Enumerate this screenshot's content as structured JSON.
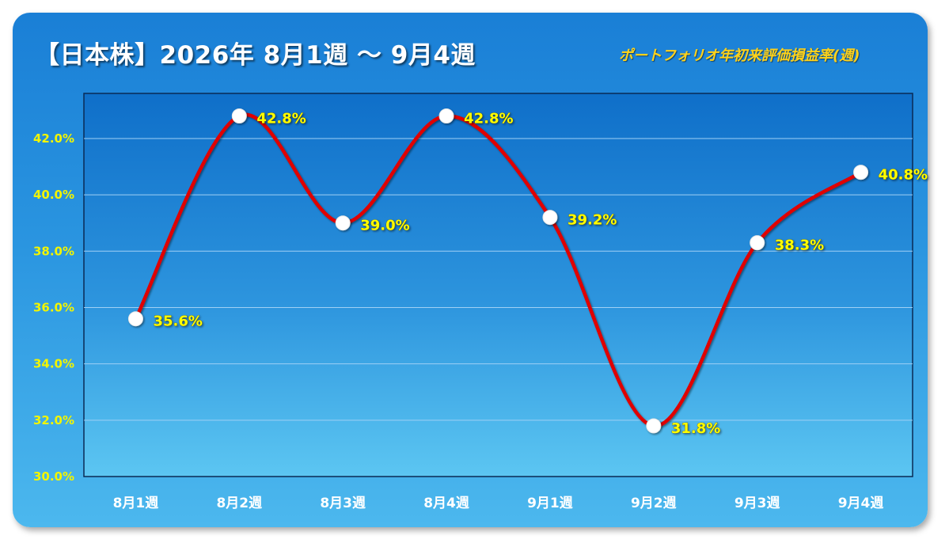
{
  "header": {
    "title": "【日本株】2026年 8月1週 ～ 9月4週",
    "subtitle": "ポートフォリオ年初来評価損益率(週)"
  },
  "colors": {
    "line": "#e00000",
    "marker": "#ffffff",
    "data_label": "#ffff00",
    "y_tick": "#f2f500",
    "x_tick": "#ffffff"
  },
  "chart_data": {
    "type": "line",
    "title": "【日本株】2026年 8月1週 ～ 9月4週",
    "subtitle": "ポートフォリオ年初来評価損益率(週)",
    "categories": [
      "8月1週",
      "8月2週",
      "8月3週",
      "8月4週",
      "9月1週",
      "9月2週",
      "9月3週",
      "9月4週"
    ],
    "series": [
      {
        "values": [
          35.6,
          42.8,
          39.0,
          42.8,
          39.2,
          31.8,
          38.3,
          40.8
        ]
      }
    ],
    "value_labels": [
      "35.6%",
      "42.8%",
      "39.0%",
      "42.8%",
      "39.2%",
      "31.8%",
      "38.3%",
      "40.8%"
    ],
    "ylim": [
      30,
      43.6
    ],
    "yticks": [
      30,
      32,
      34,
      36,
      38,
      40,
      42
    ],
    "ytick_labels": [
      "30.0%",
      "32.0%",
      "34.0%",
      "36.0%",
      "38.0%",
      "40.0%",
      "42.0%"
    ],
    "xlabel": "",
    "ylabel": "",
    "grid": true,
    "smooth": true,
    "legend": "none"
  }
}
